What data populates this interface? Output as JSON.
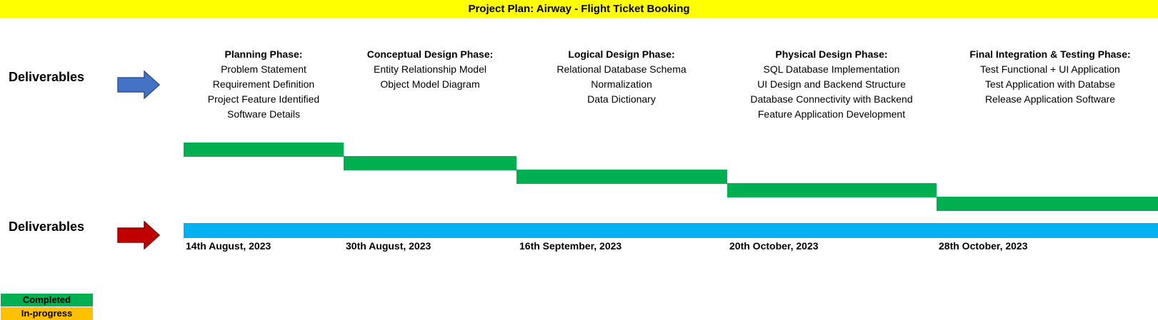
{
  "title": "Project Plan: Airway - Flight Ticket Booking",
  "row_labels": {
    "top": "Deliverables",
    "bottom": "Deliverables"
  },
  "colors": {
    "title_background": "#ffff00",
    "completed": "#00b050",
    "in_progress": "#ffc000",
    "timeline": "#00b0f0",
    "arrow_top": "#4472c4",
    "arrow_bottom": "#c00000"
  },
  "icons": {
    "top_arrow": "right-arrow-icon",
    "bottom_arrow": "right-arrow-icon"
  },
  "phases": [
    {
      "title": "Planning Phase:",
      "items": [
        "Problem Statement",
        "Requirement Definition",
        "Project Feature Identified",
        "Software Details"
      ]
    },
    {
      "title": "Conceptual Design Phase:",
      "items": [
        "Entity Relationship Model",
        "Object Model Diagram"
      ]
    },
    {
      "title": "Logical Design Phase:",
      "items": [
        "Relational Database Schema",
        "Normalization",
        "Data Dictionary"
      ]
    },
    {
      "title": "Physical Design Phase:",
      "items": [
        "SQL Database Implementation",
        "UI Design and Backend Structure",
        "Database Connectivity with Backend",
        "Feature Application Development"
      ]
    },
    {
      "title": "Final Integration & Testing Phase:",
      "items": [
        "Test Functional + UI Application",
        "Test Application with Databse",
        "Release Application Software"
      ]
    }
  ],
  "chart_data": {
    "type": "gantt",
    "title": "Project Plan: Airway - Flight Ticket Booking",
    "date_labels": [
      "14th August, 2023",
      "30th August, 2023",
      "16th September, 2023",
      "20th October, 2023",
      "28th October, 2023"
    ],
    "tasks": [
      {
        "phase": "Planning Phase:",
        "start": "2023-08-14",
        "end": "2023-08-30",
        "status": "Completed"
      },
      {
        "phase": "Conceptual Design Phase:",
        "start": "2023-08-30",
        "end": "2023-09-16",
        "status": "Completed"
      },
      {
        "phase": "Logical Design Phase:",
        "start": "2023-09-16",
        "end": "2023-10-20",
        "status": "Completed"
      },
      {
        "phase": "Physical Design Phase:",
        "start": "2023-10-20",
        "end": "2023-10-28",
        "status": "Completed"
      },
      {
        "phase": "Final Integration & Testing Phase:",
        "start": "2023-10-28",
        "end": "",
        "status": "Completed"
      }
    ],
    "legend": [
      {
        "label": "Completed",
        "color": "#00b050"
      },
      {
        "label": "In-progress",
        "color": "#ffc000"
      }
    ],
    "legend_position": "bottom-left"
  }
}
